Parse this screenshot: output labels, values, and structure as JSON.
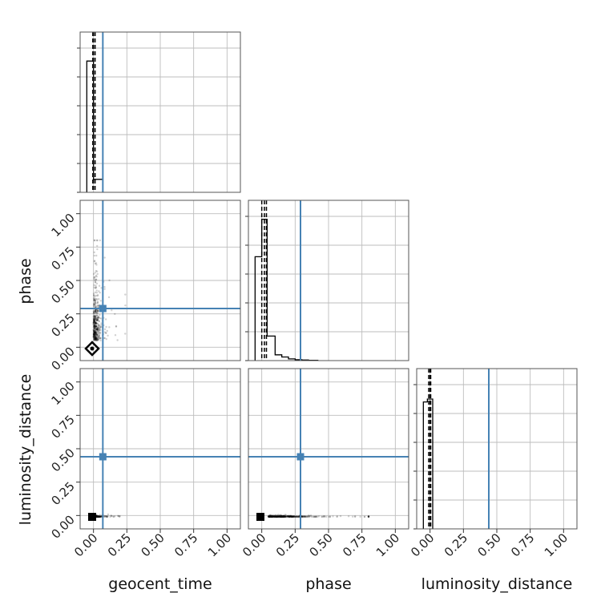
{
  "chart_data": {
    "type": "corner",
    "parameters": [
      "geocent_time",
      "phase",
      "luminosity_distance"
    ],
    "axis_range": [
      -0.1,
      1.1
    ],
    "ticks": [
      0.0,
      0.25,
      0.5,
      0.75,
      1.0
    ],
    "tick_labels": [
      "0.00",
      "0.25",
      "0.50",
      "0.75",
      "1.00"
    ],
    "grid": true,
    "injection": {
      "color": "#4682b4",
      "values": {
        "geocent_time": 0.07,
        "phase": 0.29,
        "luminosity_distance": 0.44
      }
    },
    "histograms": {
      "geocent_time": {
        "bins": [
          -0.05,
          0.0,
          0.07
        ],
        "heights": [
          0.91,
          0.09
        ],
        "ymax": 1.0,
        "quantiles": [
          -0.005,
          0.0,
          0.012
        ]
      },
      "phase": {
        "bins": [
          -0.05,
          0.0,
          0.04,
          0.1,
          0.15,
          0.2,
          0.25,
          0.3,
          0.35,
          0.42
        ],
        "heights": [
          0.72,
          0.98,
          0.17,
          0.04,
          0.025,
          0.012,
          0.006,
          0.004,
          0.002
        ],
        "ymax": 1.0,
        "quantiles": [
          0.0,
          0.02,
          0.035
        ]
      },
      "luminosity_distance": {
        "bins": [
          -0.05,
          -0.02,
          0.02
        ],
        "heights": [
          0.88,
          0.9
        ],
        "ymax": 1.0,
        "quantiles": [
          -0.01,
          0.0,
          0.005
        ]
      }
    },
    "scatter": {
      "phase_vs_geocent_time": {
        "x_center": 0.0,
        "x_spread": 0.035,
        "y_center": 0.05,
        "y_spread": 0.3,
        "y_max": 0.8,
        "marker": {
          "x": -0.01,
          "y": -0.01,
          "shape": "diamond"
        }
      },
      "luminosity_distance_vs_geocent_time": {
        "x_center": 0.0,
        "x_spread": 0.05,
        "x_max": 0.22,
        "y_center": -0.01,
        "y_spread": 0.005,
        "marker": {
          "x": -0.01,
          "y": -0.01,
          "shape": "square"
        }
      },
      "luminosity_distance_vs_phase": {
        "x_center": 0.05,
        "x_spread": 0.2,
        "x_max": 0.8,
        "y_center": -0.01,
        "y_spread": 0.005,
        "marker": {
          "x": -0.01,
          "y": -0.01,
          "shape": "square"
        }
      }
    },
    "xlabels": [
      "geocent_time",
      "phase",
      "luminosity_distance"
    ],
    "ylabels": [
      "",
      "phase",
      "luminosity_distance"
    ]
  }
}
